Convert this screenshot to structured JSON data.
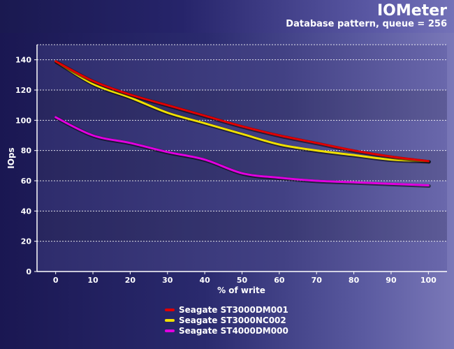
{
  "header": {
    "title": "IOMeter",
    "subtitle": "Database pattern, queue = 256"
  },
  "chart_data": {
    "type": "line",
    "title": "IOMeter",
    "subtitle": "Database pattern, queue = 256",
    "xlabel": "% of write",
    "ylabel": "IOps",
    "x": [
      0,
      10,
      20,
      30,
      40,
      50,
      60,
      70,
      80,
      90,
      100
    ],
    "xlim": [
      -5,
      105
    ],
    "ylim": [
      0,
      150
    ],
    "yticks": [
      0,
      20,
      40,
      60,
      80,
      100,
      120,
      140
    ],
    "grid": true,
    "legend_position": "bottom-center",
    "series": [
      {
        "name": "Seagate ST3000DM001",
        "color": "#e00000",
        "values": [
          139,
          126,
          117,
          110,
          103,
          96,
          90,
          85,
          80,
          76,
          73
        ]
      },
      {
        "name": "Seagate ST3000NC002",
        "color": "#f0e000",
        "values": [
          139,
          124,
          115,
          105,
          98,
          91,
          84,
          80,
          77,
          74,
          73
        ]
      },
      {
        "name": "Seagate ST4000DM000",
        "color": "#e000e0",
        "values": [
          102,
          90,
          85,
          79,
          74,
          65,
          62,
          60,
          59,
          58,
          57
        ]
      }
    ]
  }
}
